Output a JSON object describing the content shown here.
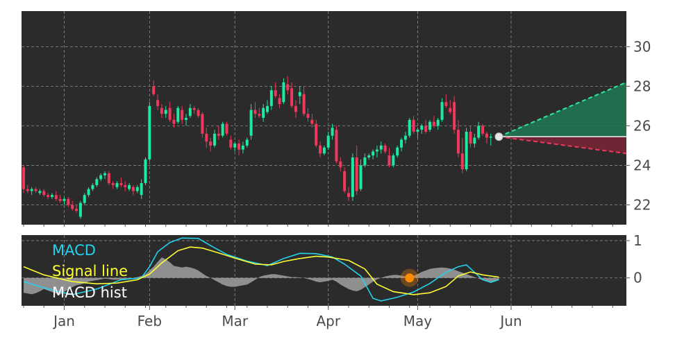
{
  "chart_data": [
    {
      "type": "candlestick",
      "panel": "price",
      "y_ticks": [
        "22",
        "24",
        "26",
        "28",
        "30"
      ],
      "ylim": [
        21,
        31.8
      ],
      "grid": true,
      "up_color": "#1de9a0",
      "down_color": "#f0385c",
      "last_price": 25.45,
      "candles": [
        [
          23.9,
          24.0,
          22.6,
          22.8
        ],
        [
          22.8,
          23.0,
          22.6,
          22.7
        ],
        [
          22.7,
          22.9,
          22.5,
          22.8
        ],
        [
          22.8,
          22.9,
          22.6,
          22.7
        ],
        [
          22.6,
          22.8,
          22.5,
          22.7
        ],
        [
          22.7,
          22.8,
          22.4,
          22.5
        ],
        [
          22.5,
          22.6,
          22.3,
          22.4
        ],
        [
          22.4,
          22.6,
          22.3,
          22.5
        ],
        [
          22.5,
          22.7,
          22.2,
          22.3
        ],
        [
          22.3,
          22.5,
          22.1,
          22.2
        ],
        [
          22.2,
          22.4,
          22.0,
          22.3
        ],
        [
          22.3,
          22.4,
          21.9,
          22.0
        ],
        [
          22.0,
          22.2,
          21.7,
          21.8
        ],
        [
          21.8,
          22.0,
          21.6,
          21.7
        ],
        [
          21.4,
          22.2,
          21.3,
          22.1
        ],
        [
          22.1,
          22.6,
          22.0,
          22.5
        ],
        [
          22.5,
          22.9,
          22.4,
          22.8
        ],
        [
          22.8,
          23.1,
          22.7,
          23.0
        ],
        [
          23.0,
          23.4,
          22.9,
          23.3
        ],
        [
          23.3,
          23.6,
          23.2,
          23.5
        ],
        [
          23.5,
          23.7,
          23.3,
          23.6
        ],
        [
          23.6,
          23.7,
          23.0,
          23.1
        ],
        [
          23.1,
          23.2,
          22.8,
          23.0
        ],
        [
          22.9,
          23.2,
          22.8,
          23.1
        ],
        [
          23.1,
          23.4,
          22.9,
          23.0
        ],
        [
          23.0,
          23.2,
          22.7,
          22.9
        ],
        [
          22.8,
          23.1,
          22.7,
          23.0
        ],
        [
          22.9,
          23.0,
          22.5,
          22.7
        ],
        [
          22.7,
          23.0,
          22.6,
          22.9
        ],
        [
          22.5,
          23.3,
          22.3,
          23.1
        ],
        [
          23.1,
          24.4,
          23.0,
          24.3
        ],
        [
          24.3,
          27.2,
          24.2,
          27.0
        ],
        [
          28.0,
          28.3,
          27.5,
          27.6
        ],
        [
          27.3,
          27.6,
          26.8,
          27.0
        ],
        [
          26.9,
          27.1,
          26.4,
          26.6
        ],
        [
          26.6,
          27.0,
          26.4,
          26.8
        ],
        [
          26.9,
          27.2,
          26.2,
          26.3
        ],
        [
          26.3,
          26.6,
          25.9,
          26.1
        ],
        [
          26.2,
          27.0,
          26.1,
          26.9
        ],
        [
          26.8,
          27.0,
          26.1,
          26.3
        ],
        [
          26.3,
          26.6,
          26.0,
          26.4
        ],
        [
          26.5,
          27.1,
          26.4,
          26.9
        ],
        [
          26.9,
          27.0,
          26.6,
          26.8
        ],
        [
          26.8,
          26.9,
          26.4,
          26.5
        ],
        [
          26.6,
          26.7,
          25.4,
          25.6
        ],
        [
          25.6,
          25.9,
          24.9,
          25.2
        ],
        [
          25.2,
          25.4,
          24.7,
          25.0
        ],
        [
          25.0,
          25.8,
          24.9,
          25.6
        ],
        [
          25.6,
          26.0,
          25.3,
          25.5
        ],
        [
          25.5,
          26.2,
          25.4,
          26.1
        ],
        [
          26.1,
          26.2,
          25.5,
          25.6
        ],
        [
          25.3,
          25.5,
          24.8,
          24.9
        ],
        [
          24.9,
          25.2,
          24.7,
          25.1
        ],
        [
          25.1,
          25.3,
          24.5,
          24.8
        ],
        [
          24.8,
          25.2,
          24.6,
          25.0
        ],
        [
          25.0,
          25.4,
          24.9,
          25.3
        ],
        [
          25.5,
          27.1,
          25.3,
          26.8
        ],
        [
          26.8,
          27.2,
          26.4,
          26.6
        ],
        [
          26.6,
          26.9,
          26.4,
          26.5
        ],
        [
          26.4,
          27.1,
          26.2,
          26.9
        ],
        [
          26.7,
          27.3,
          26.6,
          27.0
        ],
        [
          27.0,
          28.0,
          26.8,
          27.8
        ],
        [
          27.8,
          28.2,
          27.4,
          27.5
        ],
        [
          27.4,
          27.6,
          26.9,
          27.1
        ],
        [
          27.2,
          28.4,
          27.1,
          28.2
        ],
        [
          28.1,
          28.5,
          27.6,
          27.8
        ],
        [
          27.9,
          28.2,
          26.9,
          27.0
        ],
        [
          27.0,
          27.3,
          26.4,
          26.7
        ],
        [
          27.5,
          28.0,
          27.1,
          27.7
        ],
        [
          27.6,
          28.0,
          26.5,
          26.6
        ],
        [
          26.6,
          26.9,
          26.2,
          26.4
        ],
        [
          26.3,
          26.6,
          25.9,
          26.1
        ],
        [
          26.1,
          26.3,
          24.9,
          25.0
        ],
        [
          25.0,
          25.2,
          24.4,
          24.6
        ],
        [
          24.6,
          25.0,
          24.5,
          24.9
        ],
        [
          24.9,
          25.7,
          24.8,
          25.5
        ],
        [
          25.5,
          26.1,
          25.3,
          25.9
        ],
        [
          25.8,
          26.0,
          24.1,
          24.2
        ],
        [
          24.2,
          24.4,
          23.7,
          23.9
        ],
        [
          23.7,
          23.9,
          22.6,
          22.7
        ],
        [
          22.6,
          22.9,
          22.2,
          22.4
        ],
        [
          22.4,
          24.6,
          22.2,
          24.4
        ],
        [
          24.4,
          25.0,
          22.5,
          22.7
        ],
        [
          22.8,
          24.3,
          22.7,
          24.0
        ],
        [
          24.0,
          24.6,
          23.9,
          24.4
        ],
        [
          24.4,
          24.6,
          24.3,
          24.5
        ],
        [
          24.5,
          24.8,
          24.3,
          24.7
        ],
        [
          24.7,
          25.0,
          24.4,
          24.8
        ],
        [
          24.8,
          25.2,
          24.6,
          25.0
        ],
        [
          25.0,
          25.1,
          24.6,
          24.7
        ],
        [
          24.5,
          24.9,
          23.9,
          24.0
        ],
        [
          24.0,
          24.6,
          23.9,
          24.5
        ],
        [
          24.5,
          25.0,
          24.4,
          24.9
        ],
        [
          24.9,
          25.4,
          24.7,
          25.3
        ],
        [
          25.3,
          25.7,
          25.1,
          25.5
        ],
        [
          25.5,
          26.4,
          25.4,
          26.3
        ],
        [
          26.3,
          26.5,
          25.6,
          25.7
        ],
        [
          25.7,
          25.9,
          25.4,
          25.8
        ],
        [
          25.8,
          26.1,
          25.6,
          26.0
        ],
        [
          26.0,
          26.3,
          25.6,
          25.7
        ],
        [
          25.8,
          26.3,
          25.7,
          26.2
        ],
        [
          26.2,
          26.5,
          25.9,
          26.0
        ],
        [
          26.0,
          26.4,
          25.8,
          26.3
        ],
        [
          26.3,
          27.4,
          26.2,
          27.2
        ],
        [
          27.2,
          27.6,
          26.9,
          27.0
        ],
        [
          26.9,
          27.3,
          26.6,
          26.7
        ],
        [
          27.2,
          27.5,
          25.6,
          25.8
        ],
        [
          25.8,
          26.3,
          24.4,
          24.6
        ],
        [
          24.6,
          25.4,
          23.6,
          23.8
        ],
        [
          23.8,
          25.9,
          23.7,
          25.7
        ],
        [
          25.7,
          26.0,
          24.9,
          25.1
        ],
        [
          25.1,
          25.6,
          24.9,
          25.4
        ],
        [
          25.4,
          26.2,
          25.3,
          26.0
        ],
        [
          26.0,
          26.1,
          25.5,
          25.6
        ],
        [
          25.6,
          25.7,
          25.1,
          25.4
        ],
        [
          25.4,
          25.6,
          25.0,
          25.45
        ]
      ],
      "forecast": {
        "start_index": 117,
        "end_index": 178,
        "upper": 28.2,
        "lower": 24.6,
        "upper_color": "#2ee8a0",
        "lower_color": "#f0385c"
      }
    },
    {
      "type": "line",
      "panel": "macd",
      "y_ticks": [
        "1",
        "0"
      ],
      "ylim": [
        -0.75,
        1.15
      ],
      "grid": true,
      "legend": [
        "MACD",
        "Signal line",
        "MACD hist"
      ],
      "legend_colors": [
        "#22d3ee",
        "#ffff33",
        "#ffffff"
      ],
      "highlight_point": {
        "index": 95,
        "value": 0.0,
        "color": "#ff8c00"
      },
      "series": [
        {
          "name": "MACD",
          "color": "#22d3ee",
          "points": [
            [
              0,
              -0.1
            ],
            [
              6,
              -0.3
            ],
            [
              12,
              -0.45
            ],
            [
              18,
              -0.3
            ],
            [
              24,
              -0.05
            ],
            [
              29,
              0.0
            ],
            [
              31,
              0.3
            ],
            [
              33,
              0.7
            ],
            [
              36,
              0.95
            ],
            [
              39,
              1.07
            ],
            [
              43,
              1.06
            ],
            [
              46,
              0.87
            ],
            [
              50,
              0.63
            ],
            [
              55,
              0.45
            ],
            [
              60,
              0.33
            ],
            [
              64,
              0.52
            ],
            [
              68,
              0.66
            ],
            [
              72,
              0.65
            ],
            [
              76,
              0.56
            ],
            [
              79,
              0.37
            ],
            [
              83,
              0.05
            ],
            [
              86,
              -0.55
            ],
            [
              88,
              -0.62
            ],
            [
              92,
              -0.52
            ],
            [
              96,
              -0.38
            ],
            [
              100,
              -0.15
            ],
            [
              104,
              0.15
            ],
            [
              107,
              0.3
            ],
            [
              109,
              0.35
            ],
            [
              111,
              0.15
            ],
            [
              113,
              -0.05
            ],
            [
              115,
              -0.12
            ],
            [
              117,
              -0.05
            ]
          ]
        },
        {
          "name": "Signal line",
          "color": "#ffff33",
          "points": [
            [
              0,
              0.3
            ],
            [
              5,
              0.08
            ],
            [
              12,
              -0.1
            ],
            [
              18,
              -0.16
            ],
            [
              23,
              -0.14
            ],
            [
              28,
              -0.05
            ],
            [
              31,
              0.1
            ],
            [
              34,
              0.4
            ],
            [
              38,
              0.73
            ],
            [
              41,
              0.83
            ],
            [
              44,
              0.8
            ],
            [
              48,
              0.67
            ],
            [
              52,
              0.53
            ],
            [
              57,
              0.37
            ],
            [
              61,
              0.35
            ],
            [
              64,
              0.44
            ],
            [
              68,
              0.52
            ],
            [
              72,
              0.58
            ],
            [
              75,
              0.56
            ],
            [
              80,
              0.47
            ],
            [
              84,
              0.24
            ],
            [
              87,
              -0.17
            ],
            [
              91,
              -0.37
            ],
            [
              96,
              -0.45
            ],
            [
              100,
              -0.4
            ],
            [
              104,
              -0.23
            ],
            [
              107,
              0.05
            ],
            [
              110,
              0.16
            ],
            [
              113,
              0.08
            ],
            [
              117,
              0.02
            ]
          ]
        }
      ],
      "histogram": [
        -0.4,
        -0.42,
        -0.44,
        -0.41,
        -0.36,
        -0.3,
        -0.34,
        -0.38,
        -0.42,
        -0.45,
        -0.37,
        -0.32,
        -0.25,
        -0.2,
        -0.18,
        -0.14,
        -0.1,
        -0.08,
        -0.06,
        -0.04,
        -0.02,
        -0.03,
        -0.05,
        -0.05,
        -0.04,
        -0.03,
        -0.02,
        0.0,
        0.02,
        0.05,
        0.1,
        0.2,
        0.3,
        0.43,
        0.55,
        0.5,
        0.42,
        0.32,
        0.3,
        0.28,
        0.3,
        0.28,
        0.25,
        0.2,
        0.12,
        0.05,
        0.0,
        -0.06,
        -0.12,
        -0.18,
        -0.22,
        -0.24,
        -0.24,
        -0.22,
        -0.2,
        -0.18,
        -0.12,
        -0.05,
        0.02,
        0.06,
        0.08,
        0.1,
        0.1,
        0.08,
        0.06,
        0.04,
        0.02,
        0.02,
        0.01,
        0.0,
        -0.03,
        -0.06,
        -0.1,
        -0.12,
        -0.1,
        -0.08,
        -0.05,
        -0.1,
        -0.18,
        -0.24,
        -0.3,
        -0.34,
        -0.36,
        -0.32,
        -0.25,
        -0.18,
        -0.1,
        -0.04,
        0.0,
        0.04,
        0.06,
        0.08,
        0.08,
        0.06,
        0.04,
        0.02,
        0.06,
        0.1,
        0.16,
        0.2,
        0.24,
        0.26,
        0.27,
        0.28,
        0.27,
        0.25,
        0.22,
        0.18,
        0.14,
        0.1,
        0.06,
        0.02,
        -0.02,
        -0.06,
        -0.1,
        -0.12,
        -0.1,
        -0.05
      ],
      "hist_color": "#9a9a9a"
    }
  ],
  "x_axis": {
    "month_labels": [
      {
        "label": "Jan",
        "index": 10
      },
      {
        "label": "Feb",
        "index": 31
      },
      {
        "label": "Mar",
        "index": 52
      },
      {
        "label": "Apr",
        "index": 75
      },
      {
        "label": "May",
        "index": 97
      },
      {
        "label": "Jun",
        "index": 120
      }
    ]
  }
}
